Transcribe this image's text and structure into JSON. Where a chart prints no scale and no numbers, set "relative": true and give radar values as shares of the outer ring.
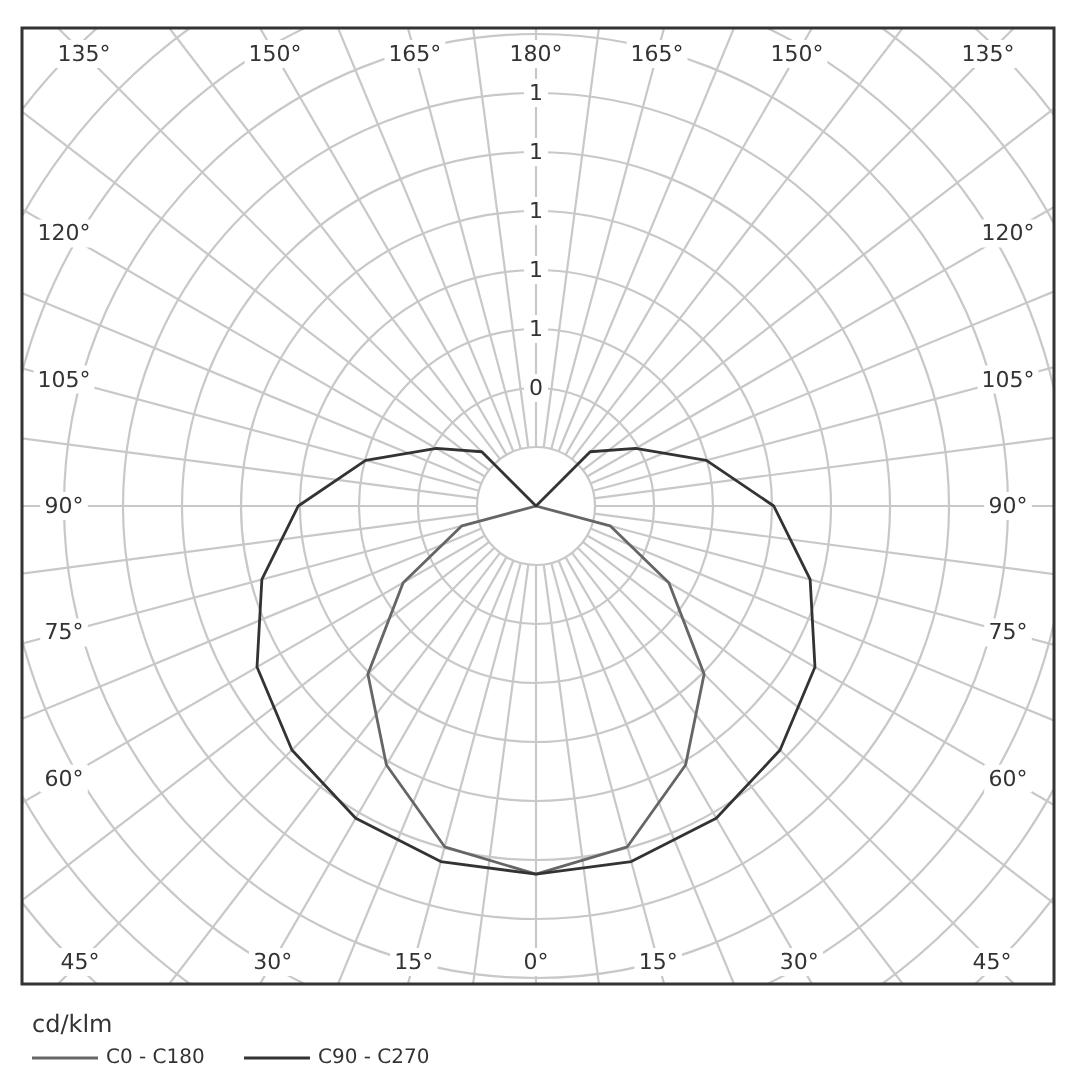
{
  "chart_data": {
    "type": "radar",
    "relative": true,
    "categories": [
      "180°",
      "165°",
      "150°",
      "135°",
      "120°",
      "105°",
      "90°",
      "75°",
      "60°",
      "45°",
      "30°",
      "15°",
      "0°",
      "15°",
      "30°",
      "45°",
      "60°",
      "75°",
      "90°",
      "105°",
      "120°",
      "135°",
      "150°",
      "165°"
    ],
    "series": [
      {
        "name": "C0 - C180",
        "color": "#666666",
        "values": [
          0,
          0,
          0,
          0,
          0,
          0,
          0,
          0.1,
          0.2,
          0.31,
          0.39,
          0.46,
          0.48,
          0.46,
          0.39,
          0.31,
          0.2,
          0.1,
          0,
          0,
          0,
          0,
          0,
          0
        ]
      },
      {
        "name": "C90 - C270",
        "color": "#333333",
        "values": [
          0,
          0,
          0,
          0.1,
          0.15,
          0.23,
          0.31,
          0.37,
          0.42,
          0.45,
          0.47,
          0.48,
          0.48,
          0.48,
          0.47,
          0.45,
          0.42,
          0.37,
          0.31,
          0.23,
          0.15,
          0.1,
          0,
          0
        ]
      }
    ],
    "annotations": [
      "0",
      "1",
      "1",
      "1",
      "1",
      "1"
    ],
    "grid": true,
    "legend": "bottom left",
    "legend_title": "cd/klm"
  }
}
